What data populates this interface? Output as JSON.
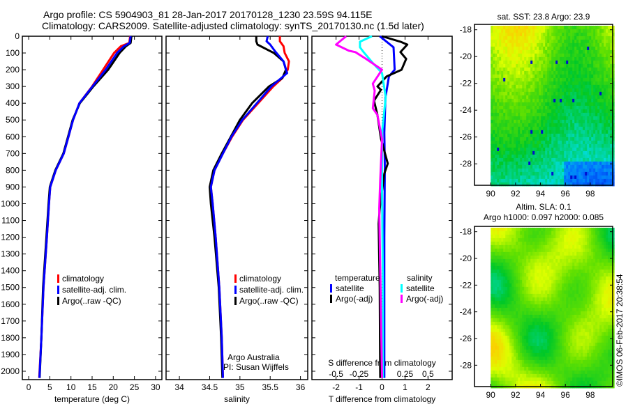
{
  "chart_data": [
    {
      "type": "line",
      "title": [
        "Argo profile: CS 5904903_81 28-Jan-2017 20170128_1230 23.59S 94.115E",
        "Climatology: CARS2009. Satellite-adjusted climatology: synTS_20170130.nc (1.5d later)"
      ],
      "xlabel": "temperature (deg C)",
      "xlim": [
        -1.5,
        31.5
      ],
      "ylim": [
        0,
        2050
      ],
      "xticks": [
        0,
        5,
        10,
        15,
        20,
        25,
        30
      ],
      "yticks": [
        0,
        100,
        200,
        300,
        400,
        500,
        600,
        700,
        800,
        900,
        1000,
        1100,
        1200,
        1300,
        1400,
        1500,
        1600,
        1700,
        1800,
        1900,
        2000
      ],
      "legend": [
        "climatology",
        "satellite-adj. clim.",
        "Argo(..raw -QC)"
      ],
      "series": [
        {
          "name": "climatology",
          "color": "#ff0000",
          "depth": [
            0,
            40,
            60,
            100,
            200,
            300,
            400,
            500,
            600,
            700,
            800,
            900,
            1000,
            1200,
            1500,
            1800,
            2040
          ],
          "values": [
            24,
            23.8,
            21.8,
            20.2,
            17.6,
            15,
            12,
            10.5,
            9.4,
            8.3,
            6.4,
            5.1,
            4.8,
            4.3,
            3.5,
            3,
            2.5
          ]
        },
        {
          "name": "Argo(..raw -QC)",
          "color": "#000000",
          "depth": [
            0,
            40,
            60,
            100,
            200,
            300,
            400,
            500,
            600,
            700,
            800,
            900,
            1000,
            1200,
            1500,
            1800,
            2040
          ],
          "values": [
            24.3,
            24.1,
            23,
            21.5,
            18.8,
            15.3,
            12.1,
            10.4,
            9.3,
            8.2,
            6.3,
            5,
            4.7,
            4.2,
            3.4,
            3,
            2.6
          ]
        },
        {
          "name": "satellite-adj. clim.",
          "color": "#0000ff",
          "depth": [
            0,
            40,
            60,
            100,
            200,
            300,
            400,
            500,
            600,
            700,
            800,
            900,
            1000,
            1200,
            1500,
            1800,
            2040
          ],
          "values": [
            24.1,
            23.9,
            22.5,
            20.9,
            18.2,
            15.1,
            12,
            10.5,
            9.4,
            8.3,
            6.4,
            5.1,
            4.8,
            4.3,
            3.5,
            3,
            2.55
          ]
        }
      ]
    },
    {
      "type": "line",
      "xlabel": "salinity",
      "xlim": [
        33.78,
        36.12
      ],
      "xticks": [
        34,
        34.5,
        35,
        35.5,
        36
      ],
      "legend": [
        "climatology",
        "satellite-adj. clim.",
        "Argo(..raw -QC)"
      ],
      "annotation": [
        "Argo Australia",
        "PI: Susan Wijffels"
      ],
      "series": [
        {
          "name": "climatology",
          "color": "#ff0000",
          "depth": [
            0,
            30,
            60,
            100,
            150,
            200,
            250,
            300,
            400,
            500,
            600,
            700,
            800,
            900,
            1000,
            1200,
            1500,
            1800,
            2040
          ],
          "values": [
            35.66,
            35.66,
            35.72,
            35.74,
            35.81,
            35.79,
            35.7,
            35.55,
            35.3,
            35.05,
            34.87,
            34.72,
            34.58,
            34.52,
            34.55,
            34.6,
            34.66,
            34.7,
            34.72
          ]
        },
        {
          "name": "Argo(..raw -QC)",
          "color": "#000000",
          "depth": [
            0,
            30,
            50,
            80,
            100,
            150,
            200,
            250,
            300,
            400,
            500,
            600,
            700,
            800,
            900,
            1000,
            1200,
            1500,
            1800,
            2040
          ],
          "values": [
            35.27,
            35.27,
            35.29,
            35.45,
            35.56,
            35.72,
            35.76,
            35.7,
            35.48,
            35.2,
            35.0,
            34.85,
            34.7,
            34.56,
            34.5,
            34.52,
            34.58,
            34.65,
            34.69,
            34.71
          ]
        },
        {
          "name": "satellite-adj. clim.",
          "color": "#0000ff",
          "depth": [
            0,
            30,
            50,
            90,
            150,
            220,
            300,
            400,
            500,
            600,
            700,
            800,
            900,
            1000,
            1200,
            1500,
            1800,
            2040
          ],
          "values": [
            35.46,
            35.44,
            35.5,
            35.58,
            35.72,
            35.78,
            35.52,
            35.28,
            35.04,
            34.86,
            34.72,
            34.58,
            34.52,
            34.55,
            34.6,
            34.66,
            34.7,
            34.72
          ]
        }
      ]
    },
    {
      "type": "line",
      "xlabel": "T difference from climatology",
      "xlabel2": "S difference from climatology",
      "xlim": [
        -3.05,
        3.05
      ],
      "xticks": [
        -2,
        -1,
        0,
        1,
        2
      ],
      "xticks2": [
        -0.5,
        -0.25,
        0,
        0.25,
        0.5
      ],
      "legend_titles": [
        "temperature",
        "salinity"
      ],
      "legend": [
        "satellite",
        "Argo(-adj)",
        "satellite",
        "Argo(-adj)"
      ],
      "series": [
        {
          "name": "temperature satellite",
          "color": "#0000ff",
          "axis": "T",
          "depth": [
            0,
            33,
            66,
            200,
            240,
            365,
            575,
            780,
            1200,
            2040
          ],
          "values": [
            -0.1,
            0.2,
            0.5,
            0.55,
            0.3,
            0.15,
            0.1,
            0.12,
            0.1,
            0.1
          ]
        },
        {
          "name": "temperature Argo(-adj)",
          "color": "#000000",
          "axis": "T",
          "depth": [
            0,
            33,
            50,
            95,
            135,
            200,
            240,
            300,
            320,
            385,
            470,
            610,
            760,
            820,
            1030,
            1120,
            1500,
            2040
          ],
          "values": [
            0.0,
            0.8,
            1.1,
            0.8,
            1.05,
            0.85,
            0.2,
            -0.2,
            -0.05,
            -0.35,
            -0.2,
            -0.05,
            0.25,
            0.1,
            -0.1,
            -0.15,
            -0.1,
            -0.08
          ]
        },
        {
          "name": "salinity satellite",
          "color": "#00ffff",
          "axis": "S",
          "depth": [
            0,
            33,
            66,
            95,
            160,
            220,
            365,
            575,
            900,
            1500,
            2040
          ],
          "values": [
            -0.11,
            -0.24,
            -0.24,
            -0.2,
            -0.1,
            0,
            0.04,
            0.0,
            0.0,
            0.01,
            0.01
          ]
        },
        {
          "name": "salinity Argo(-adj)",
          "color": "#ff00ff",
          "axis": "S",
          "depth": [
            0,
            50,
            87,
            95,
            137,
            200,
            283,
            325,
            430,
            470,
            615,
            860,
            1030,
            2040
          ],
          "values": [
            -0.39,
            -0.5,
            -0.36,
            -0.29,
            -0.17,
            0,
            -0.1,
            -0.08,
            -0.1,
            -0.05,
            0,
            -0.02,
            -0.03,
            0
          ]
        }
      ]
    },
    {
      "type": "heatmap",
      "title": "sat. SST: 23.8 Argo: 23.9",
      "xlim": [
        88.7,
        99.8
      ],
      "ylim": [
        -29.6,
        -17.6
      ],
      "data_lon": [
        90,
        99.8
      ],
      "data_lat": [
        -29.5,
        -17.7
      ],
      "xticks": [
        90,
        92,
        94,
        96,
        98
      ],
      "yticks": [
        -18,
        -20,
        -22,
        -24,
        -26,
        -28
      ]
    },
    {
      "type": "heatmap",
      "title": [
        "Altim. SLA: 0.1",
        "Argo h1000: 0.097 h2000: 0.085"
      ],
      "xlim": [
        88.7,
        99.8
      ],
      "ylim": [
        -29.6,
        -17.6
      ],
      "data_lon": [
        90,
        99.8
      ],
      "data_lat": [
        -29.5,
        -17.7
      ],
      "xticks": [
        90,
        92,
        94,
        96,
        98
      ],
      "yticks": [
        -18,
        -20,
        -22,
        -24,
        -26,
        -28
      ]
    }
  ],
  "footer": {
    "credit": "©IMOS 06-Feb-2017 20:38:54"
  }
}
